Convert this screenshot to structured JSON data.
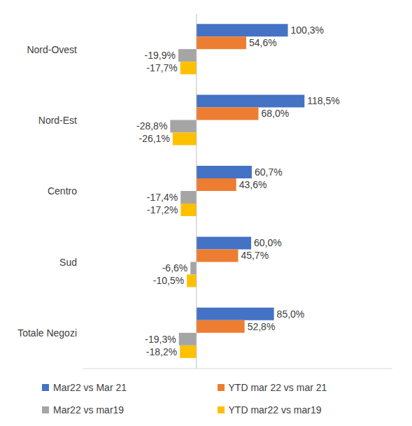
{
  "chart_data": {
    "type": "bar",
    "orientation": "horizontal",
    "categories": [
      "Nord-Ovest",
      "Nord-Est",
      "Centro",
      "Sud",
      "Totale Negozi"
    ],
    "series": [
      {
        "name": "Mar22 vs Mar 21",
        "color": "#4472c4",
        "values": [
          100.3,
          118.5,
          60.7,
          60.0,
          85.0
        ],
        "value_labels": [
          "100,3%",
          "118,5%",
          "60,7%",
          "60,0%",
          "85,0%"
        ]
      },
      {
        "name": "YTD mar 22 vs mar 21",
        "color": "#ed7d31",
        "values": [
          54.6,
          68.0,
          43.6,
          45.7,
          52.8
        ],
        "value_labels": [
          "54,6%",
          "68,0%",
          "43,6%",
          "45,7%",
          "52,8%"
        ]
      },
      {
        "name": "Mar22 vs mar19",
        "color": "#a5a5a5",
        "values": [
          -19.9,
          -28.8,
          -17.4,
          -6.6,
          -19.3
        ],
        "value_labels": [
          "-19,9%",
          "-28,8%",
          "-17,4%",
          "-6,6%",
          "-19,3%"
        ]
      },
      {
        "name": "YTD mar22 vs mar19",
        "color": "#ffc000",
        "values": [
          -17.7,
          -26.1,
          -17.2,
          -10.5,
          -18.2
        ],
        "value_labels": [
          "-17,7%",
          "-26,1%",
          "-17,2%",
          "-10,5%",
          "-18,2%"
        ]
      }
    ],
    "xlim": [
      -125,
      215
    ],
    "data_labels": true,
    "legend": "bottom",
    "tick_labels": "y",
    "grid": false
  }
}
